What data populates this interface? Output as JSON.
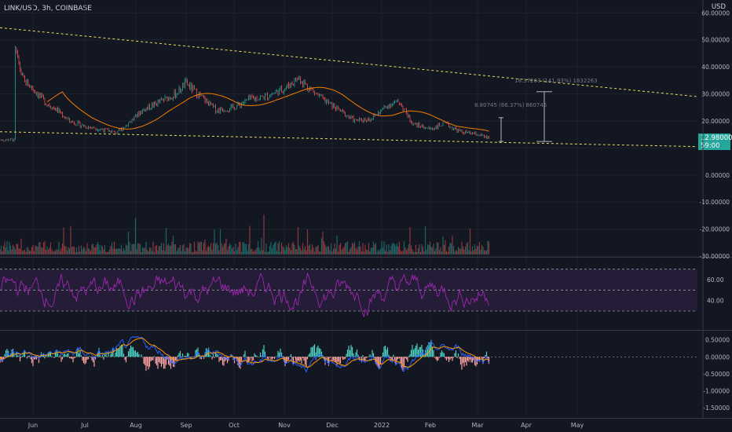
{
  "header": {
    "symbol": "LINK/USD, 3h, COINBASE",
    "currency": "USD"
  },
  "last_price": {
    "value": "12.98000",
    "countdown": "59:00"
  },
  "colors": {
    "background": "#131722",
    "candle_up": "#26a69a",
    "candle_down": "#ef5350",
    "ma": "#f57c00",
    "trendline": "#e8e05a",
    "rsi": "#9c27b0",
    "macd": "#2962ff",
    "signal": "#ff9800"
  },
  "measurements": [
    {
      "text": "8.80745 (66.37%) 860745"
    },
    {
      "text": "18.37263 (141.93%) 1832263"
    }
  ],
  "chart_data": [
    {
      "type": "candlestick",
      "title": "LINK/USD, 3h, COINBASE",
      "x_ticks": [
        "Jun",
        "Jul",
        "Aug",
        "Sep",
        "Oct",
        "Nov",
        "Dec",
        "2022",
        "Feb",
        "Mar",
        "Apr",
        "May"
      ],
      "y_ticks": [
        60,
        50,
        40,
        30,
        20,
        10,
        0,
        -10,
        -20,
        -30
      ],
      "y_tick_labels": [
        "60.00000",
        "50.00000",
        "40.00000",
        "30.00000",
        "20.00000",
        "",
        "0.00000",
        "-10.00000",
        "-20.00000",
        "-30.00000"
      ],
      "ylim": [
        -30,
        63
      ],
      "price_trend": [
        [
          "May 20",
          46
        ],
        [
          "May 25",
          35
        ],
        [
          "Jun 1",
          32
        ],
        [
          "Jun 8",
          27
        ],
        [
          "Jun 15",
          24
        ],
        [
          "Jun 22",
          20
        ],
        [
          "Jul 1",
          18
        ],
        [
          "Jul 10",
          17
        ],
        [
          "Jul 20",
          15.5
        ],
        [
          "Jul 28",
          20
        ],
        [
          "Aug 5",
          24
        ],
        [
          "Aug 15",
          27
        ],
        [
          "Aug 25",
          30
        ],
        [
          "Sep 1",
          34
        ],
        [
          "Sep 8",
          30
        ],
        [
          "Sep 20",
          24
        ],
        [
          "Oct 1",
          25
        ],
        [
          "Oct 10",
          28
        ],
        [
          "Oct 20",
          29
        ],
        [
          "Nov 1",
          32
        ],
        [
          "Nov 10",
          36
        ],
        [
          "Nov 15",
          33
        ],
        [
          "Nov 25",
          28
        ],
        [
          "Dec 5",
          24
        ],
        [
          "Dec 15",
          20
        ],
        [
          "Dec 25",
          21
        ],
        [
          "Jan 5",
          26
        ],
        [
          "Jan 12",
          27
        ],
        [
          "Jan 20",
          19
        ],
        [
          "Feb 1",
          17
        ],
        [
          "Feb 10",
          19
        ],
        [
          "Feb 20",
          16
        ],
        [
          "Mar 1",
          15
        ],
        [
          "Mar 10",
          13
        ]
      ],
      "annotations": [
        "8.80745 (66.37%) 860745",
        "18.37263 (141.93%) 1832263"
      ],
      "grid": true
    },
    {
      "type": "line",
      "title": "",
      "y_ticks": [
        60,
        40
      ],
      "y_tick_labels": [
        "60.00",
        "40.00"
      ],
      "bands": [
        70,
        50,
        30
      ],
      "ylim": [
        15,
        78
      ]
    },
    {
      "type": "bar",
      "title": "",
      "y_ticks": [
        0.5,
        0,
        -0.5,
        -1,
        -1.5
      ],
      "y_tick_labels": [
        "0.50000",
        "0.00000",
        "-0.50000",
        "-1.00000",
        "-1.50000"
      ],
      "ylim": [
        -1.75,
        0.7
      ]
    }
  ]
}
